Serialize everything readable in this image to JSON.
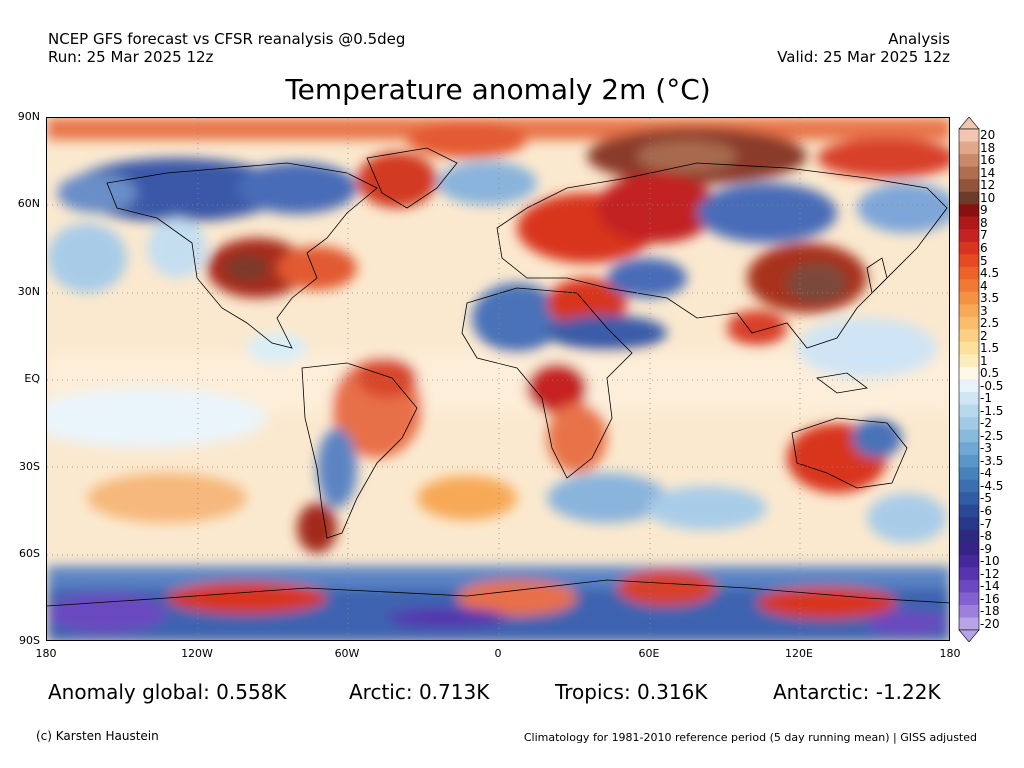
{
  "header": {
    "line1_left": "NCEP GFS forecast vs CFSR reanalysis @0.5deg",
    "line2_left": "Run: 25 Mar 2025 12z",
    "line1_right": "Analysis",
    "line2_right": "Valid: 25 Mar 2025 12z"
  },
  "title": "Temperature anomaly 2m (°C)",
  "map": {
    "projection": "equirectangular",
    "lat_labels": [
      "90N",
      "60N",
      "30N",
      "EQ",
      "30S",
      "60S",
      "90S"
    ],
    "lon_labels": [
      "180",
      "120W",
      "60W",
      "0",
      "60E",
      "120E",
      "180"
    ],
    "gridlines": "dotted"
  },
  "colorbar": {
    "labels": [
      "20",
      "18",
      "16",
      "14",
      "12",
      "10",
      "9",
      "8",
      "7",
      "6",
      "5",
      "4.5",
      "4",
      "3.5",
      "3",
      "2.5",
      "2",
      "1.5",
      "1",
      "0.5",
      "-0.5",
      "-1",
      "-1.5",
      "-2",
      "-2.5",
      "-3",
      "-3.5",
      "-4",
      "-4.5",
      "-5",
      "-6",
      "-7",
      "-8",
      "-9",
      "-10",
      "-12",
      "-14",
      "-16",
      "-18",
      "-20"
    ],
    "colors": [
      "#f3c6b1",
      "#e0a888",
      "#c98a6a",
      "#b06e50",
      "#93543c",
      "#6e3a2a",
      "#8a1010",
      "#b01818",
      "#c62222",
      "#d8341f",
      "#e54a22",
      "#ec6228",
      "#f07a34",
      "#f49244",
      "#f7a956",
      "#f9bd6c",
      "#fbd084",
      "#fce09c",
      "#fdedbc",
      "#fef8e4",
      "#e8f2fa",
      "#d0e6f4",
      "#b8d8ee",
      "#a0cae6",
      "#88badd",
      "#70a8d3",
      "#5b96c8",
      "#4882bc",
      "#3c6fb0",
      "#325ca3",
      "#2a4896",
      "#283889",
      "#2b2a7e",
      "#352388",
      "#44289c",
      "#5534ae",
      "#6a48c0",
      "#8262d0",
      "#9c80dc",
      "#b8a2e8"
    ]
  },
  "stats": {
    "global": "Anomaly global: 0.558K",
    "arctic": "Arctic: 0.713K",
    "tropics": "Tropics: 0.316K",
    "antarctic": "Antarctic: -1.22K"
  },
  "footer": {
    "credit": "(c) Karsten Haustein",
    "note": "Climatology for 1981-2010 reference period (5 day running mean) | GISS adjusted"
  }
}
